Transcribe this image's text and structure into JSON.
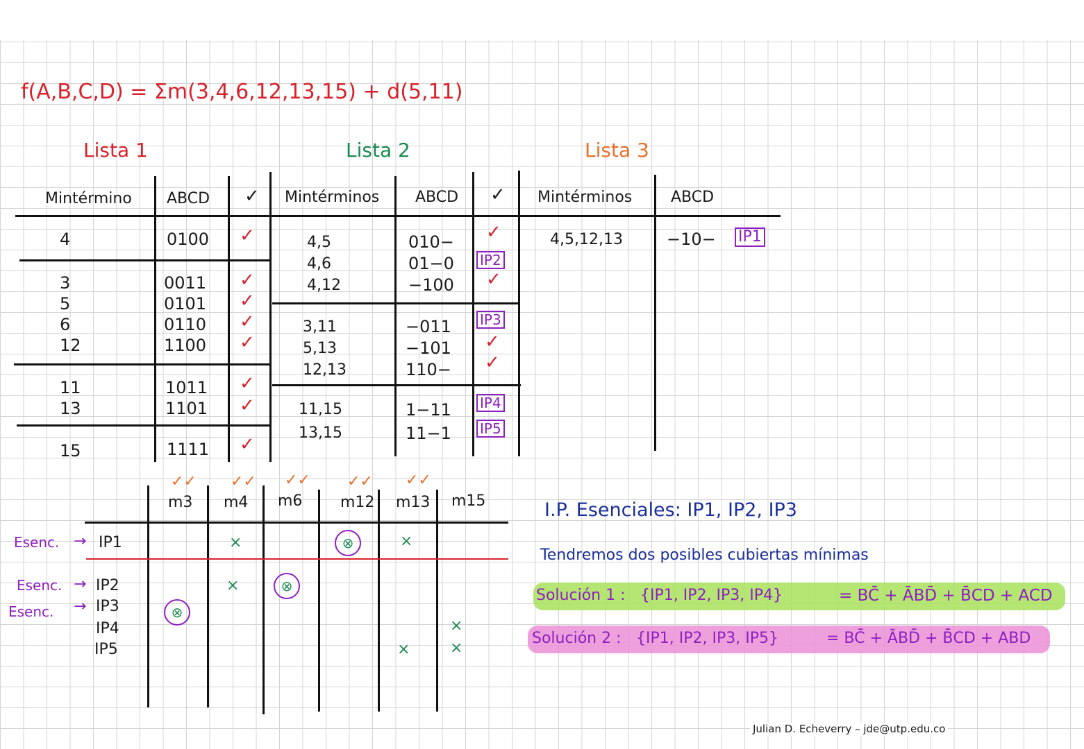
{
  "function_header": "f(A,B,C,D) = Σm(3,4,6,12,13,15) + d(5,11)",
  "lists": {
    "lista1": "Lista 1",
    "lista2": "Lista 2",
    "lista3": "Lista 3"
  },
  "table1": {
    "headers": [
      "Mintérmino",
      "ABCD",
      "✓"
    ],
    "groups": [
      {
        "minterms": [
          "4"
        ],
        "bits": [
          "0100"
        ],
        "checks": [
          "✓"
        ]
      },
      {
        "minterms": [
          "3",
          "5",
          "6",
          "12"
        ],
        "bits": [
          "0011",
          "0101",
          "0110",
          "1100"
        ],
        "checks": [
          "✓",
          "✓",
          "✓",
          "✓"
        ]
      },
      {
        "minterms": [
          "11",
          "13"
        ],
        "bits": [
          "1011",
          "1101"
        ],
        "checks": [
          "✓",
          "✓"
        ]
      },
      {
        "minterms": [
          "15"
        ],
        "bits": [
          "1111"
        ],
        "checks": [
          "✓"
        ]
      }
    ]
  },
  "table2": {
    "headers": [
      "Mintérminos",
      "ABCD",
      "✓"
    ],
    "groups": [
      {
        "pairs": [
          "4,5",
          "4,6",
          "4,12"
        ],
        "bits": [
          "010−",
          "01−0",
          "−100"
        ],
        "marks": [
          "✓",
          "IP2",
          "✓"
        ]
      },
      {
        "pairs": [
          "3,11",
          "5,13",
          "12,13"
        ],
        "bits": [
          "−011",
          "−101",
          "110−"
        ],
        "marks": [
          "IP3",
          "✓",
          "✓"
        ]
      },
      {
        "pairs": [
          "11,15",
          "13,15"
        ],
        "bits": [
          "1−11",
          "11−1"
        ],
        "marks": [
          "IP4",
          "IP5"
        ]
      }
    ]
  },
  "table3": {
    "headers": [
      "Mintérminos",
      "ABCD"
    ],
    "row": {
      "terms": "4,5,12,13",
      "bits": "−10−",
      "mark": "IP1"
    }
  },
  "chart_table": {
    "columns": [
      "m3",
      "m4",
      "m6",
      "m12",
      "m13",
      "m15"
    ],
    "column_checks": [
      "✓✓",
      "✓✓",
      "✓✓",
      "✓✓",
      "✓✓",
      ""
    ],
    "rows": [
      {
        "label": "IP1",
        "tag": "Esenc.",
        "cells": [
          "",
          "×",
          "",
          "⊗",
          "×",
          ""
        ]
      },
      {
        "label": "IP2",
        "tag": "Esenc.",
        "cells": [
          "",
          "×",
          "⊗",
          "",
          "",
          ""
        ]
      },
      {
        "label": "IP3",
        "tag": "Esenc.",
        "cells": [
          "⊗",
          "",
          "",
          "",
          "",
          ""
        ]
      },
      {
        "label": "IP4",
        "tag": "",
        "cells": [
          "",
          "",
          "",
          "",
          "",
          "×"
        ]
      },
      {
        "label": "IP5",
        "tag": "",
        "cells": [
          "",
          "",
          "",
          "",
          "×",
          "×"
        ]
      }
    ],
    "arrow": "→"
  },
  "notes": {
    "esenciales": "I.P. Esenciales: IP1, IP2, IP3",
    "tendremos": "Tendremos dos posibles cubiertas mínimas",
    "sol1_label": "Solución 1 :",
    "sol1_set": "{IP1, IP2, IP3, IP4}",
    "sol1_expr": "= BC̄ + ĀBD̄ + B̄CD + ACD",
    "sol2_label": "Solución 2 :",
    "sol2_set": "{IP1, IP2, IP3, IP5}",
    "sol2_expr": "= BC̄ + ĀBD̄ + B̄CD + ABD"
  },
  "footer": "Julian D. Echeverry  –  jde@utp.edu.co"
}
